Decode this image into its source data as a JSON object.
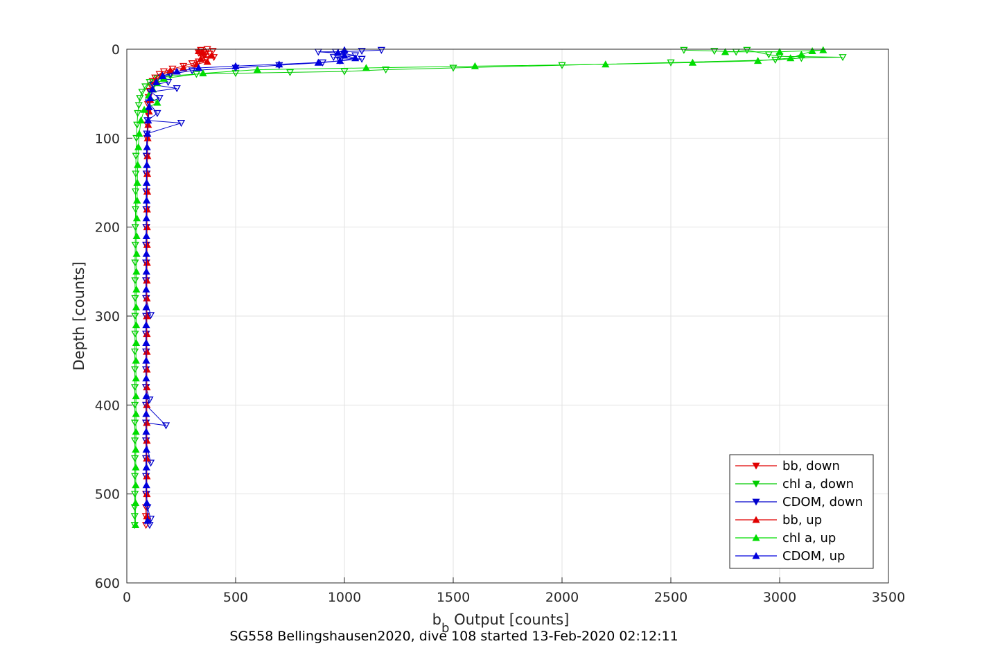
{
  "chart_data": {
    "type": "line",
    "xlabel_main": "b",
    "xlabel_sub": "b",
    "xlabel_rest": " Output [counts]",
    "ylabel": "Depth [counts]",
    "caption": "SG558 Bellingshausen2020, dive 108 started 13-Feb-2020 02:12:11",
    "xlim": [
      0,
      3500
    ],
    "ylim": [
      0,
      600
    ],
    "y_reversed": true,
    "grid": true,
    "legend_position": "bottom-right",
    "x_ticks": [
      "0",
      "500",
      "1000",
      "1500",
      "2000",
      "2500",
      "3000",
      "3500"
    ],
    "y_ticks": [
      "0",
      "100",
      "200",
      "300",
      "400",
      "500",
      "600"
    ],
    "series": [
      {
        "name": "bb, down",
        "color": "#e00000",
        "marker": "triangle-down",
        "points": [
          [
            370,
            0
          ],
          [
            340,
            1
          ],
          [
            395,
            2
          ],
          [
            355,
            3
          ],
          [
            330,
            4
          ],
          [
            380,
            5
          ],
          [
            360,
            6
          ],
          [
            345,
            8
          ],
          [
            400,
            9
          ],
          [
            350,
            10
          ],
          [
            365,
            12
          ],
          [
            330,
            14
          ],
          [
            300,
            16
          ],
          [
            260,
            19
          ],
          [
            210,
            22
          ],
          [
            170,
            25
          ],
          [
            150,
            28
          ],
          [
            130,
            32
          ],
          [
            118,
            36
          ],
          [
            110,
            41
          ],
          [
            104,
            47
          ],
          [
            100,
            54
          ],
          [
            97,
            62
          ],
          [
            95,
            72
          ],
          [
            94,
            85
          ],
          [
            93,
            100
          ],
          [
            92,
            120
          ],
          [
            92,
            140
          ],
          [
            91,
            160
          ],
          [
            91,
            180
          ],
          [
            90,
            200
          ],
          [
            90,
            220
          ],
          [
            90,
            240
          ],
          [
            89,
            260
          ],
          [
            89,
            280
          ],
          [
            89,
            300
          ],
          [
            89,
            320
          ],
          [
            89,
            340
          ],
          [
            88,
            360
          ],
          [
            88,
            380
          ],
          [
            88,
            400
          ],
          [
            88,
            420
          ],
          [
            88,
            440
          ],
          [
            88,
            460
          ],
          [
            88,
            480
          ],
          [
            88,
            500
          ],
          [
            88,
            515
          ],
          [
            87,
            525
          ],
          [
            88,
            535
          ]
        ]
      },
      {
        "name": "chl a, down",
        "color": "#00cc00",
        "marker": "triangle-down",
        "points": [
          [
            2560,
            1
          ],
          [
            2700,
            2
          ],
          [
            2800,
            3
          ],
          [
            2850,
            1
          ],
          [
            2950,
            6
          ],
          [
            3000,
            8
          ],
          [
            3290,
            9
          ],
          [
            3100,
            10
          ],
          [
            2980,
            12
          ],
          [
            2500,
            15
          ],
          [
            2000,
            18
          ],
          [
            1500,
            21
          ],
          [
            1190,
            23
          ],
          [
            1000,
            25
          ],
          [
            750,
            26
          ],
          [
            500,
            27
          ],
          [
            320,
            28
          ],
          [
            200,
            30
          ],
          [
            140,
            33
          ],
          [
            105,
            37
          ],
          [
            85,
            42
          ],
          [
            70,
            48
          ],
          [
            60,
            55
          ],
          [
            55,
            63
          ],
          [
            50,
            72
          ],
          [
            47,
            85
          ],
          [
            44,
            100
          ],
          [
            42,
            120
          ],
          [
            41,
            140
          ],
          [
            40,
            160
          ],
          [
            40,
            180
          ],
          [
            39,
            200
          ],
          [
            39,
            220
          ],
          [
            38,
            240
          ],
          [
            38,
            260
          ],
          [
            38,
            280
          ],
          [
            38,
            300
          ],
          [
            38,
            320
          ],
          [
            37,
            340
          ],
          [
            37,
            360
          ],
          [
            37,
            380
          ],
          [
            37,
            400
          ],
          [
            37,
            420
          ],
          [
            37,
            440
          ],
          [
            37,
            460
          ],
          [
            37,
            480
          ],
          [
            37,
            500
          ],
          [
            36,
            515
          ],
          [
            36,
            525
          ],
          [
            36,
            535
          ]
        ]
      },
      {
        "name": "CDOM, down",
        "color": "#0000cc",
        "marker": "triangle-down",
        "points": [
          [
            1170,
            1
          ],
          [
            1080,
            2
          ],
          [
            960,
            3
          ],
          [
            880,
            3
          ],
          [
            1000,
            5
          ],
          [
            1050,
            7
          ],
          [
            950,
            9
          ],
          [
            1080,
            11
          ],
          [
            980,
            13
          ],
          [
            900,
            15
          ],
          [
            700,
            18
          ],
          [
            500,
            21
          ],
          [
            300,
            24
          ],
          [
            200,
            28
          ],
          [
            160,
            32
          ],
          [
            190,
            37
          ],
          [
            120,
            40
          ],
          [
            230,
            44
          ],
          [
            110,
            48
          ],
          [
            150,
            55
          ],
          [
            100,
            60
          ],
          [
            140,
            72
          ],
          [
            95,
            80
          ],
          [
            250,
            83
          ],
          [
            92,
            95
          ],
          [
            90,
            120
          ],
          [
            90,
            140
          ],
          [
            89,
            160
          ],
          [
            89,
            180
          ],
          [
            89,
            200
          ],
          [
            88,
            220
          ],
          [
            88,
            240
          ],
          [
            88,
            260
          ],
          [
            88,
            280
          ],
          [
            110,
            299
          ],
          [
            88,
            300
          ],
          [
            88,
            320
          ],
          [
            88,
            340
          ],
          [
            88,
            360
          ],
          [
            88,
            380
          ],
          [
            105,
            394
          ],
          [
            88,
            400
          ],
          [
            180,
            423
          ],
          [
            88,
            420
          ],
          [
            88,
            440
          ],
          [
            110,
            465
          ],
          [
            88,
            460
          ],
          [
            88,
            480
          ],
          [
            90,
            500
          ],
          [
            95,
            515
          ],
          [
            110,
            528
          ],
          [
            105,
            535
          ]
        ]
      },
      {
        "name": "bb, up",
        "color": "#e00000",
        "marker": "triangle-up",
        "points": [
          [
            92,
            525
          ],
          [
            92,
            500
          ],
          [
            92,
            480
          ],
          [
            92,
            460
          ],
          [
            92,
            440
          ],
          [
            92,
            420
          ],
          [
            92,
            400
          ],
          [
            92,
            380
          ],
          [
            92,
            360
          ],
          [
            92,
            340
          ],
          [
            92,
            320
          ],
          [
            92,
            300
          ],
          [
            92,
            280
          ],
          [
            92,
            260
          ],
          [
            93,
            240
          ],
          [
            93,
            220
          ],
          [
            93,
            200
          ],
          [
            93,
            180
          ],
          [
            94,
            160
          ],
          [
            94,
            140
          ],
          [
            95,
            120
          ],
          [
            96,
            100
          ],
          [
            98,
            85
          ],
          [
            102,
            70
          ],
          [
            108,
            57
          ],
          [
            118,
            45
          ],
          [
            135,
            35
          ],
          [
            160,
            29
          ],
          [
            200,
            24
          ],
          [
            260,
            21
          ],
          [
            320,
            17
          ],
          [
            370,
            14
          ],
          [
            340,
            11
          ],
          [
            390,
            7
          ],
          [
            350,
            4
          ],
          [
            330,
            2
          ]
        ]
      },
      {
        "name": "chl a, up",
        "color": "#00dd00",
        "marker": "triangle-up",
        "points": [
          [
            40,
            535
          ],
          [
            40,
            510
          ],
          [
            41,
            490
          ],
          [
            41,
            470
          ],
          [
            41,
            450
          ],
          [
            42,
            430
          ],
          [
            42,
            410
          ],
          [
            42,
            390
          ],
          [
            42,
            370
          ],
          [
            42,
            350
          ],
          [
            43,
            330
          ],
          [
            43,
            310
          ],
          [
            43,
            290
          ],
          [
            44,
            270
          ],
          [
            44,
            250
          ],
          [
            45,
            230
          ],
          [
            45,
            210
          ],
          [
            46,
            190
          ],
          [
            47,
            170
          ],
          [
            48,
            150
          ],
          [
            50,
            130
          ],
          [
            53,
            110
          ],
          [
            57,
            95
          ],
          [
            65,
            80
          ],
          [
            80,
            68
          ],
          [
            140,
            60
          ],
          [
            100,
            52
          ],
          [
            120,
            45
          ],
          [
            140,
            38
          ],
          [
            170,
            33
          ],
          [
            350,
            27
          ],
          [
            600,
            23
          ],
          [
            1100,
            21
          ],
          [
            1600,
            19
          ],
          [
            2200,
            17
          ],
          [
            2600,
            15
          ],
          [
            2900,
            13
          ],
          [
            3050,
            10
          ],
          [
            3100,
            6
          ],
          [
            3150,
            2
          ],
          [
            3200,
            1
          ],
          [
            3000,
            3
          ],
          [
            2750,
            3
          ]
        ]
      },
      {
        "name": "CDOM, up",
        "color": "#0000dd",
        "marker": "triangle-up",
        "points": [
          [
            95,
            530
          ],
          [
            92,
            510
          ],
          [
            90,
            490
          ],
          [
            90,
            470
          ],
          [
            90,
            450
          ],
          [
            89,
            430
          ],
          [
            89,
            410
          ],
          [
            89,
            390
          ],
          [
            89,
            370
          ],
          [
            89,
            350
          ],
          [
            89,
            330
          ],
          [
            89,
            310
          ],
          [
            89,
            290
          ],
          [
            89,
            270
          ],
          [
            90,
            250
          ],
          [
            90,
            230
          ],
          [
            90,
            210
          ],
          [
            90,
            190
          ],
          [
            91,
            170
          ],
          [
            91,
            150
          ],
          [
            92,
            130
          ],
          [
            93,
            110
          ],
          [
            95,
            95
          ],
          [
            98,
            80
          ],
          [
            102,
            65
          ],
          [
            108,
            55
          ],
          [
            118,
            45
          ],
          [
            135,
            37
          ],
          [
            165,
            30
          ],
          [
            230,
            25
          ],
          [
            330,
            21
          ],
          [
            500,
            19
          ],
          [
            700,
            17
          ],
          [
            880,
            15
          ],
          [
            980,
            13
          ],
          [
            1050,
            10
          ],
          [
            1000,
            7
          ],
          [
            970,
            4
          ],
          [
            1000,
            1
          ]
        ]
      }
    ]
  }
}
